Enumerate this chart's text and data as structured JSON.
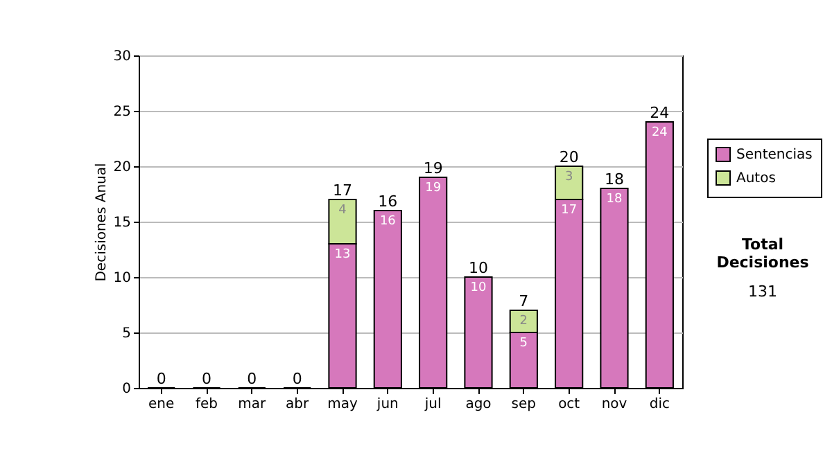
{
  "chart_data": {
    "type": "bar",
    "stacked": true,
    "ylabel": "Decisiones Anual",
    "categories": [
      "ene",
      "feb",
      "mar",
      "abr",
      "may",
      "jun",
      "jul",
      "ago",
      "sep",
      "oct",
      "nov",
      "dic"
    ],
    "series": [
      {
        "name": "Sentencias",
        "color": "#d678bc",
        "values": [
          0,
          0,
          0,
          0,
          13,
          16,
          19,
          10,
          5,
          17,
          18,
          24
        ],
        "value_labels": [
          null,
          null,
          null,
          null,
          "13",
          "16",
          "19",
          "10",
          "5",
          "17",
          "18",
          "24"
        ]
      },
      {
        "name": "Autos",
        "color": "#cce598",
        "values": [
          0,
          0,
          0,
          0,
          4,
          0,
          0,
          0,
          2,
          3,
          0,
          0
        ],
        "value_labels": [
          null,
          null,
          null,
          null,
          "4",
          null,
          null,
          null,
          "2",
          "3",
          null,
          null
        ]
      }
    ],
    "totals": [
      "0",
      "0",
      "0",
      "0",
      "17",
      "16",
      "19",
      "10",
      "7",
      "20",
      "18",
      "24"
    ],
    "ylim": [
      0,
      30
    ],
    "yticks": [
      0,
      5,
      10,
      15,
      20,
      25,
      30
    ],
    "grid": "y",
    "legend": "right",
    "annotations": [
      "Total Decisiones",
      "131"
    ]
  }
}
